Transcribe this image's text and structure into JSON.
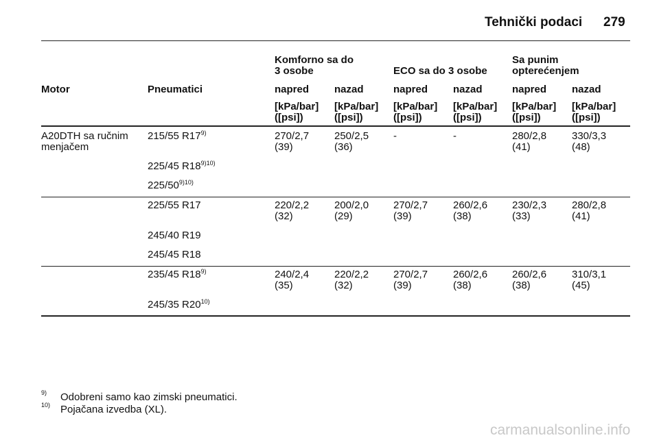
{
  "header": {
    "title": "Tehnički podaci",
    "page": "279"
  },
  "table": {
    "groups": [
      {
        "label": [
          "Komforno sa do",
          "3 osobe"
        ]
      },
      {
        "label": [
          "ECO sa do 3 osobe"
        ]
      },
      {
        "label": [
          "Sa punim",
          "opterećenjem"
        ]
      }
    ],
    "columns": [
      "Motor",
      "Pneumatici",
      "napred",
      "nazad",
      "napred",
      "nazad",
      "napred",
      "nazad"
    ],
    "units": [
      [
        "[kPa/bar]",
        "([psi])"
      ],
      [
        "[kPa/bar]",
        "([psi])"
      ],
      [
        "[kPa/bar]",
        "([psi])"
      ],
      [
        "[kPa/bar]",
        "([psi])"
      ],
      [
        "[kPa/bar]",
        "([psi])"
      ],
      [
        "[kPa/bar]",
        "([psi])"
      ]
    ],
    "rows": [
      {
        "motor": [
          "A20DTH sa ručnim",
          "menjačem"
        ],
        "tyres": [
          {
            "size": "215/55 R17",
            "note": "9)"
          },
          {
            "size": "225/45 R18",
            "note": "9)10)"
          },
          {
            "size": "225/50",
            "note": "9)10)"
          }
        ],
        "values": [
          [
            "270/2,7",
            "(39)"
          ],
          [
            "250/2,5",
            "(36)"
          ],
          [
            "-"
          ],
          [
            "-"
          ],
          [
            "280/2,8",
            "(41)"
          ],
          [
            "330/3,3",
            "(48)"
          ]
        ]
      },
      {
        "tyres": [
          {
            "size": "225/55 R17"
          },
          {
            "size": "245/40 R19"
          },
          {
            "size": "245/45 R18"
          }
        ],
        "values": [
          [
            "220/2,2",
            "(32)"
          ],
          [
            "200/2,0",
            "(29)"
          ],
          [
            "270/2,7",
            "(39)"
          ],
          [
            "260/2,6",
            "(38)"
          ],
          [
            "230/2,3",
            "(33)"
          ],
          [
            "280/2,8",
            "(41)"
          ]
        ]
      },
      {
        "tyres": [
          {
            "size": "235/45 R18",
            "note": "9)"
          },
          {
            "size": "245/35 R20",
            "note": "10)"
          }
        ],
        "values": [
          [
            "240/2,4",
            "(35)"
          ],
          [
            "220/2,2",
            "(32)"
          ],
          [
            "270/2,7",
            "(39)"
          ],
          [
            "260/2,6",
            "(38)"
          ],
          [
            "260/2,6",
            "(38)"
          ],
          [
            "310/3,1",
            "(45)"
          ]
        ]
      }
    ]
  },
  "footnotes": [
    {
      "mark": "9)",
      "text": "Odobreni samo kao zimski pneumatici."
    },
    {
      "mark": "10)",
      "text": "Pojačana izvedba (XL)."
    }
  ],
  "watermark": "carmanualsonline.info"
}
